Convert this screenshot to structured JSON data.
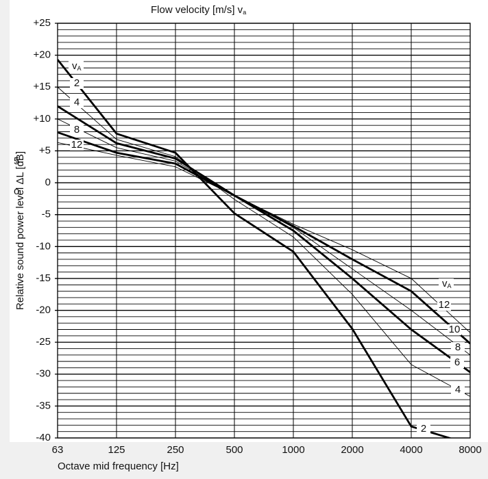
{
  "chart_data": {
    "type": "line",
    "title": "Flow velocity [m/s] v",
    "title_sub": "a",
    "x_label": "Octave mid frequency [Hz]",
    "y_label": "Relative sound power level ΔL [dB]",
    "categories": [
      "63",
      "125",
      "250",
      "500",
      "1000",
      "2000",
      "4000",
      "8000"
    ],
    "ylim": [
      -40,
      25
    ],
    "yticks": [
      {
        "value": 25,
        "label": "+25"
      },
      {
        "value": 20,
        "label": "+20"
      },
      {
        "value": 15,
        "label": "+15"
      },
      {
        "value": 10,
        "label": "+10"
      },
      {
        "value": 5,
        "label": "+5"
      },
      0,
      -5,
      -10,
      -15,
      -20,
      -25,
      -30,
      -35,
      -40
    ],
    "minor_grid_step": 1,
    "series_label_prefix": {
      "main": "v",
      "sub": "A"
    },
    "annotations": [
      "5",
      "o"
    ],
    "series": [
      {
        "name": "2",
        "color": "#000000",
        "thick": true,
        "values": [
          19.3,
          7.7,
          4.7,
          -4.8,
          -10.8,
          -22.9,
          -38.2,
          -41
        ]
      },
      {
        "name": "4",
        "color": "#000000",
        "thick": false,
        "values": [
          15,
          6.8,
          4.1,
          -2.6,
          -8.5,
          -17.5,
          -28.5,
          -33.5
        ]
      },
      {
        "name": "6",
        "color": "#000000",
        "thick": true,
        "values": [
          12,
          6.2,
          3.8,
          -2,
          -7.5,
          -15,
          -23,
          -29.7
        ]
      },
      {
        "name": "8",
        "color": "#000000",
        "thick": false,
        "values": [
          10,
          5.5,
          3.4,
          -2,
          -7,
          -13.5,
          -20,
          -27
        ]
      },
      {
        "name": "10",
        "color": "#000000",
        "thick": true,
        "values": [
          7.9,
          4.7,
          3,
          -2,
          -6.8,
          -12,
          -17,
          -25.2
        ]
      },
      {
        "name": "12",
        "color": "#000000",
        "thick": false,
        "values": [
          6.3,
          4.3,
          2.5,
          -2,
          -6.5,
          -10.5,
          -15,
          -23.5
        ]
      }
    ]
  }
}
